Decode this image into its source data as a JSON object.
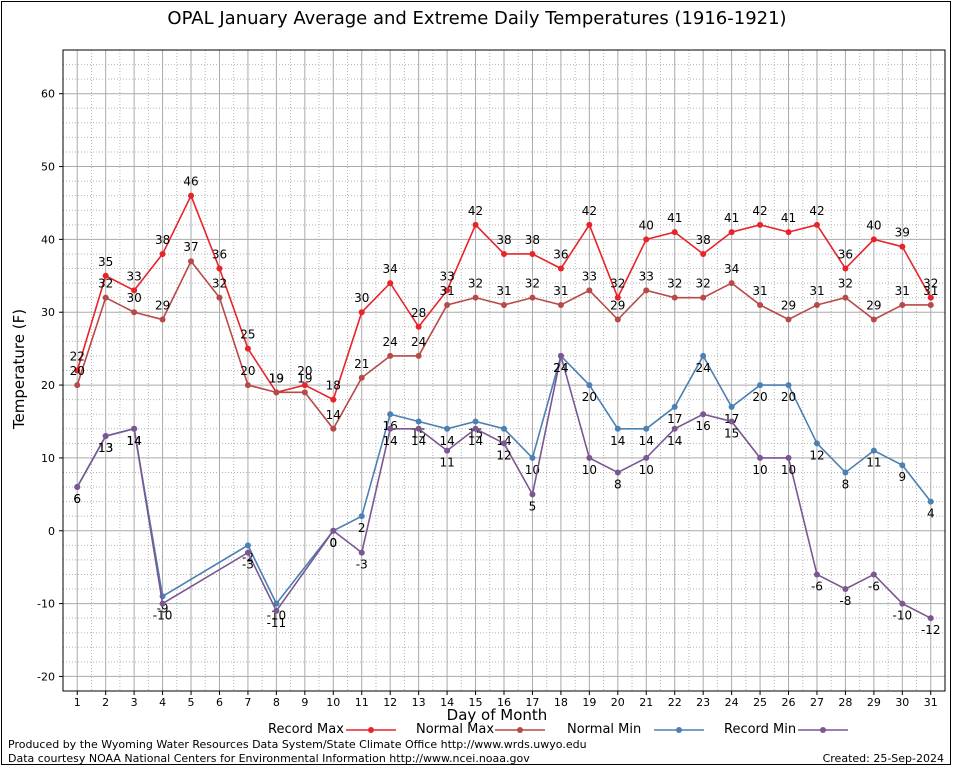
{
  "chart_data": {
    "type": "line",
    "title": "OPAL January Average and Extreme Daily Temperatures (1916-1921)",
    "xlabel": "Day of Month",
    "ylabel": "Temperature (F)",
    "x": [
      1,
      2,
      3,
      4,
      5,
      6,
      7,
      8,
      9,
      10,
      11,
      12,
      13,
      14,
      15,
      16,
      17,
      18,
      19,
      20,
      21,
      22,
      23,
      24,
      25,
      26,
      27,
      28,
      29,
      30,
      31
    ],
    "xlim": [
      0.5,
      31.5
    ],
    "ylim": [
      -22,
      66
    ],
    "yticks": [
      -20,
      -10,
      0,
      10,
      20,
      30,
      40,
      50,
      60
    ],
    "grid": true,
    "legend_position": "bottom",
    "series": [
      {
        "name": "Record Max",
        "color": "#e8232a",
        "values": [
          22,
          35,
          33,
          38,
          46,
          36,
          25,
          19,
          20,
          18,
          30,
          34,
          28,
          33,
          42,
          38,
          38,
          36,
          42,
          32,
          40,
          41,
          38,
          41,
          42,
          41,
          42,
          36,
          40,
          39,
          32
        ]
      },
      {
        "name": "Normal Max",
        "color": "#b74a48",
        "values": [
          20,
          32,
          30,
          29,
          37,
          32,
          20,
          19,
          19,
          14,
          21,
          24,
          24,
          31,
          32,
          31,
          32,
          31,
          33,
          29,
          33,
          32,
          32,
          34,
          31,
          29,
          31,
          32,
          29,
          31,
          31
        ]
      },
      {
        "name": "Normal Min",
        "color": "#4b80b3",
        "values": [
          6,
          13,
          14,
          -9,
          null,
          null,
          -2,
          -10,
          null,
          0,
          2,
          16,
          15,
          14,
          15,
          14,
          10,
          24,
          20,
          14,
          14,
          17,
          24,
          17,
          20,
          20,
          12,
          8,
          11,
          9,
          4
        ]
      },
      {
        "name": "Record Min",
        "color": "#7b5792",
        "values": [
          6,
          13,
          14,
          -10,
          null,
          null,
          -3,
          -11,
          null,
          0,
          -3,
          14,
          14,
          11,
          14,
          12,
          5,
          24,
          10,
          8,
          10,
          14,
          16,
          15,
          10,
          10,
          -6,
          -8,
          -6,
          -10,
          -12
        ]
      }
    ]
  },
  "footer": {
    "line1": "Produced by the Wyoming Water Resources Data System/State Climate Office http://www.wrds.uwyo.edu",
    "line2": "Data courtesy NOAA National Centers for Environmental Information http://www.ncei.noaa.gov",
    "created": "Created:  25-Sep-2024"
  }
}
